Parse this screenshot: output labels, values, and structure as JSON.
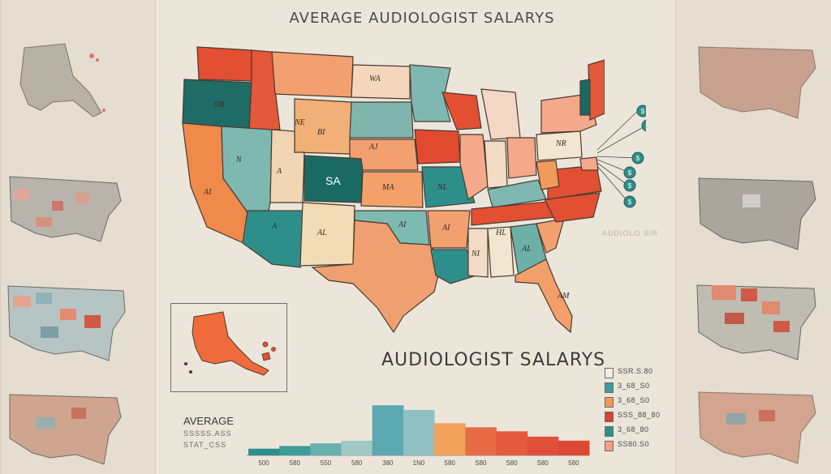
{
  "header": {
    "title": "AVERAGE AUDIOLOGIST SALARYS",
    "subtitle": "AUDIOLOGIST SALARYS",
    "watermark": "AUDIOLO SIR"
  },
  "map": {
    "highlight_label": "SA",
    "state_labels": [
      "OR",
      "NE",
      "BI",
      "A",
      "AL",
      "N",
      "AI",
      "SA",
      "A",
      "AJ",
      "MA",
      "NL",
      "AI",
      "AI",
      "NI",
      "HL",
      "AL",
      "NR",
      "AM",
      "WA"
    ]
  },
  "callouts": [
    "$",
    "$",
    "$",
    "$",
    "$",
    "$"
  ],
  "legend": {
    "items": [
      {
        "label": "SSR.S.80",
        "color": "#f2ede2"
      },
      {
        "label": "3_68_S0",
        "color": "#3e9c9a"
      },
      {
        "label": "3_68_S0",
        "color": "#f29a55"
      },
      {
        "label": "SSS_88_80",
        "color": "#d8442e"
      },
      {
        "label": "3_68_80",
        "color": "#2e8f8a"
      },
      {
        "label": "SS80.S0",
        "color": "#f2a080"
      }
    ]
  },
  "average": {
    "title": "AVERAGE",
    "line1": "SSSSS.ASS",
    "line2": "STAT_CSS"
  },
  "chart_data": {
    "type": "bar",
    "title": "",
    "categories": [
      "500",
      "580",
      "550",
      "580",
      "380",
      "1N0",
      "580",
      "S80",
      "S80",
      "S80",
      "580"
    ],
    "values": [
      10,
      14,
      18,
      22,
      75,
      68,
      48,
      42,
      36,
      28,
      22
    ],
    "colors": [
      "#2e8f8a",
      "#3e9c9a",
      "#66b1ad",
      "#9fc9c2",
      "#5ba8b0",
      "#8ec0c4",
      "#f1a15a",
      "#e86b48",
      "#e55a3c",
      "#e0503a",
      "#dc4a36"
    ],
    "ylim": [
      0,
      80
    ]
  },
  "side_maps": {
    "colors": [
      "#c9786b",
      "#9c9a94",
      "#7aa0a6",
      "#c9735e",
      "#b1a797"
    ]
  }
}
